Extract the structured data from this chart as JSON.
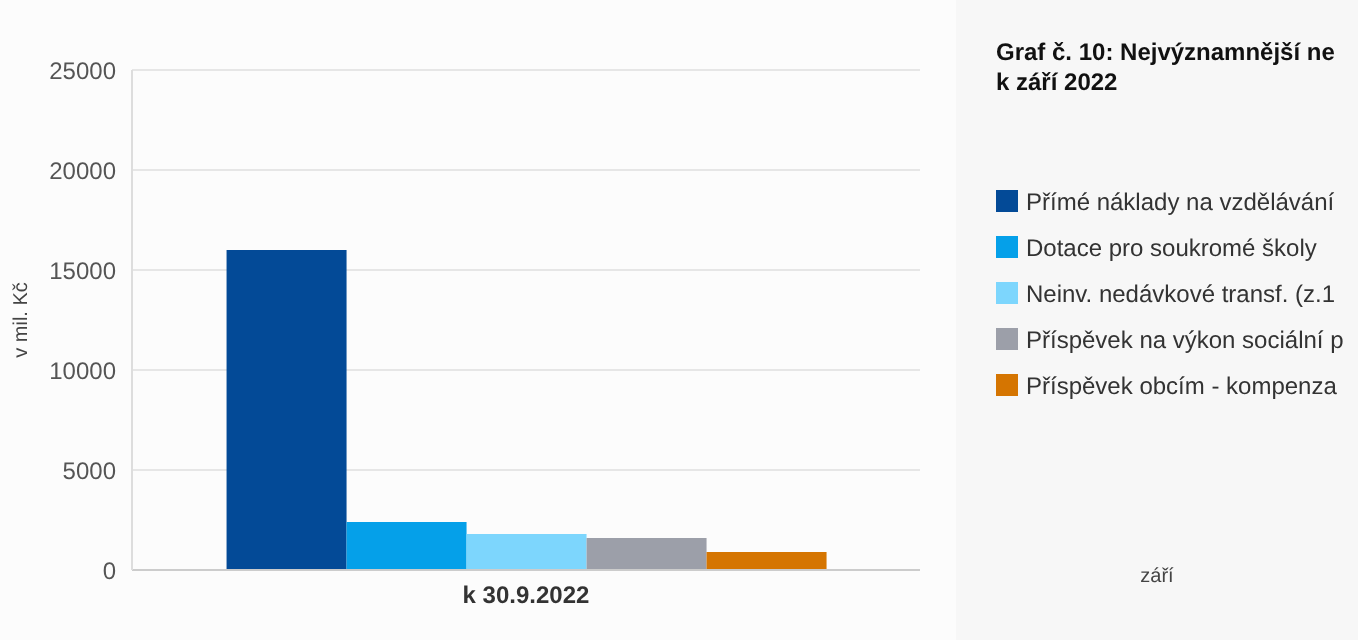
{
  "chart_data": {
    "type": "bar",
    "title": "Graf č. 10: Nejvýznamnější ne\nk září 2022",
    "ylabel": "v mil. Kč",
    "categories": [
      "k 30.9.2022"
    ],
    "series": [
      {
        "name": "Přímé náklady na vzdělávání",
        "color": "#034a97",
        "values": [
          16000
        ]
      },
      {
        "name": "Dotace pro soukromé školy",
        "color": "#05a0e9",
        "values": [
          2400
        ]
      },
      {
        "name": "Neinv. nedávkové transf. (z.1",
        "color": "#7dd6fd",
        "values": [
          1800
        ]
      },
      {
        "name": "Příspěvek na výkon sociální p",
        "color": "#9c9fa9",
        "values": [
          1600
        ]
      },
      {
        "name": "Příspěvek obcím - kompenza",
        "color": "#d57501",
        "values": [
          900
        ]
      }
    ],
    "ylim": [
      0,
      25000
    ],
    "yticks": [
      0,
      5000,
      10000,
      15000,
      20000,
      25000
    ],
    "grid": "y",
    "legend": "right",
    "annotations": [
      "září"
    ]
  }
}
